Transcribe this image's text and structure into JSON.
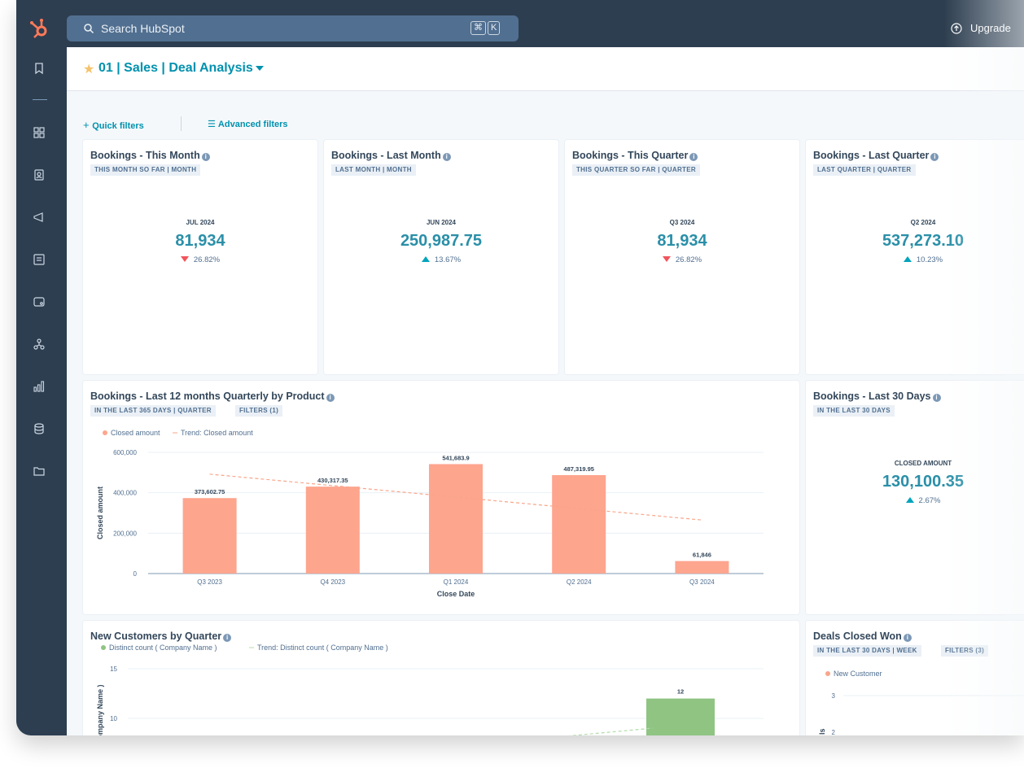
{
  "topbar": {
    "search_placeholder": "Search HubSpot",
    "shortcut_key1": "⌘",
    "shortcut_key2": "K",
    "upgrade_label": "Upgrade"
  },
  "sidebar": {
    "items": [
      {
        "icon": "bookmark-icon"
      },
      {
        "icon": "apps-icon"
      },
      {
        "icon": "contacts-icon"
      },
      {
        "icon": "marketing-megaphone-icon"
      },
      {
        "icon": "content-icon"
      },
      {
        "icon": "commerce-wallet-icon"
      },
      {
        "icon": "automation-icon"
      },
      {
        "icon": "reporting-icon"
      },
      {
        "icon": "data-management-icon"
      },
      {
        "icon": "library-folder-icon"
      }
    ]
  },
  "dashboard": {
    "title": "01 | Sales | Deal Analysis",
    "quick_filters": "Quick filters",
    "advanced_filters": "Advanced filters"
  },
  "kpi_cards": [
    {
      "title": "Bookings - This Month",
      "tag": "THIS MONTH SO FAR | MONTH",
      "period": "JUL 2024",
      "value": "81,934",
      "direction": "down",
      "change": "26.82%"
    },
    {
      "title": "Bookings - Last Month",
      "tag": "LAST MONTH | MONTH",
      "period": "JUN 2024",
      "value": "250,987.75",
      "direction": "up",
      "change": "13.67%"
    },
    {
      "title": "Bookings - This Quarter",
      "tag": "THIS QUARTER SO FAR | QUARTER",
      "period": "Q3 2024",
      "value": "81,934",
      "direction": "down",
      "change": "26.82%"
    },
    {
      "title": "Bookings - Last Quarter",
      "tag": "LAST QUARTER | QUARTER",
      "period": "Q2 2024",
      "value": "537,273.10",
      "direction": "up",
      "change": "10.23%"
    }
  ],
  "bookings_chart": {
    "title": "Bookings - Last 12 months Quarterly by Product",
    "tags": [
      "IN THE LAST 365 DAYS | QUARTER",
      "FILTERS (1)"
    ]
  },
  "last30": {
    "title": "Bookings - Last 30 Days",
    "tag": "IN THE LAST 30 DAYS",
    "label": "CLOSED AMOUNT",
    "value": "130,100.35",
    "direction": "up",
    "change": "2.67%"
  },
  "new_customers": {
    "title": "New Customers by Quarter"
  },
  "deals_won": {
    "title": "Deals Closed Won",
    "tags": [
      "IN THE LAST 30 DAYS | WEEK",
      "FILTERS (3)"
    ],
    "legend": "New Customer",
    "y_ticks": [
      "3",
      "2"
    ],
    "ylabel_fragment": "ls",
    "color": "#f8a58a"
  },
  "chart_data": [
    {
      "type": "bar",
      "title": "Bookings - Last 12 months Quarterly by Product",
      "categories": [
        "Q3 2023",
        "Q4 2023",
        "Q1 2024",
        "Q2 2024",
        "Q3 2024"
      ],
      "series": [
        {
          "name": "Closed amount",
          "values": [
            373602.75,
            430317.35,
            541683.9,
            487319.95,
            61846
          ],
          "color": "#fea58e"
        }
      ],
      "bar_labels": [
        "373,602.75",
        "430,317.35",
        "541,683.9",
        "487,319.95",
        "61,846"
      ],
      "trend": {
        "name": "Trend: Closed amount",
        "values": [
          492000,
          265000
        ],
        "color": "#f8a58a"
      },
      "y_ticks": [
        "0",
        "200,000",
        "400,000",
        "600,000"
      ],
      "ylim": [
        0,
        600000
      ],
      "xlabel": "Close Date",
      "ylabel": "Closed amount",
      "grid": true,
      "legend": "top-left"
    },
    {
      "type": "bar",
      "title": "New Customers by Quarter",
      "series": [
        {
          "name": "Distinct count ( Company Name )",
          "values": [
            12
          ],
          "color": "#8fc483"
        }
      ],
      "bar_labels": [
        "12"
      ],
      "trend": {
        "name": "Trend: Distinct count ( Company Name )",
        "color": "#b4dcaa"
      },
      "y_ticks": [
        "10",
        "15"
      ],
      "ylabel": "ompany Name )",
      "grid": true,
      "legend": "top-left"
    }
  ]
}
